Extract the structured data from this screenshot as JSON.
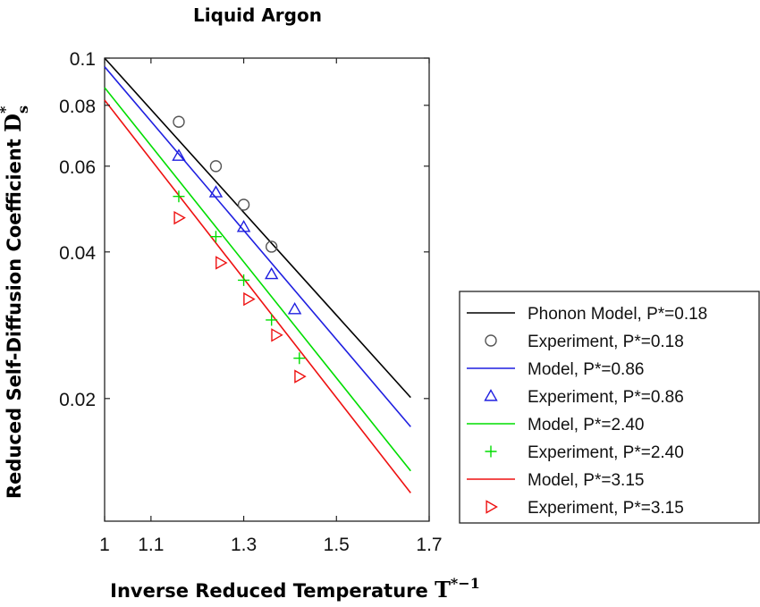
{
  "chart_data": {
    "type": "line",
    "title": "Liquid Argon",
    "xlabel": "Inverse Reduced Temperature",
    "xlabel_symbol": "T",
    "xlabel_superscript": "*−1",
    "ylabel": "Reduced Self-Diffusion Coefficient",
    "ylabel_symbol": "D",
    "ylabel_subscript": "s",
    "ylabel_superscript": "*",
    "x_scale": "linear",
    "y_scale": "log",
    "xlim": [
      1,
      1.7
    ],
    "ylim": [
      0.0112,
      0.1
    ],
    "xticks": [
      1,
      1.1,
      1.3,
      1.5,
      1.7
    ],
    "xtick_labels": [
      "1",
      "1.1",
      "1.3",
      "1.5",
      "1.7"
    ],
    "yticks": [
      0.02,
      0.04,
      0.06,
      0.08,
      0.1
    ],
    "ytick_labels": [
      "0.02",
      "0.04",
      "0.06",
      "0.08",
      "0.1"
    ],
    "grid": false,
    "legend_position": "right, outside",
    "series": [
      {
        "name": "Phonon Model, P*=0.18",
        "kind": "line",
        "color": "#000000",
        "x": [
          1,
          1.66
        ],
        "y": [
          0.1,
          0.0201
        ]
      },
      {
        "name": "Experiment, P*=0.18",
        "kind": "marker",
        "marker": "circle",
        "color": "#555555",
        "x": [
          1.16,
          1.24,
          1.3,
          1.36
        ],
        "y": [
          0.074,
          0.06,
          0.05,
          0.041
        ]
      },
      {
        "name": "Model, P*=0.86",
        "kind": "line",
        "color": "#1f1fe0",
        "x": [
          1,
          1.66
        ],
        "y": [
          0.096,
          0.0175
        ]
      },
      {
        "name": "Experiment, P*=0.86",
        "kind": "marker",
        "marker": "triangle-up",
        "color": "#1f1fe0",
        "x": [
          1.16,
          1.24,
          1.3,
          1.36,
          1.41
        ],
        "y": [
          0.063,
          0.053,
          0.045,
          0.036,
          0.0305
        ]
      },
      {
        "name": "Model, P*=2.40",
        "kind": "line",
        "color": "#00dd00",
        "x": [
          1,
          1.66
        ],
        "y": [
          0.087,
          0.0142
        ]
      },
      {
        "name": "Experiment, P*=2.40",
        "kind": "marker",
        "marker": "plus",
        "color": "#00dd00",
        "x": [
          1.16,
          1.24,
          1.3,
          1.36,
          1.42
        ],
        "y": [
          0.052,
          0.043,
          0.035,
          0.029,
          0.0242
        ]
      },
      {
        "name": "Model, P*=3.15",
        "kind": "line",
        "color": "#ee1111",
        "x": [
          1,
          1.66
        ],
        "y": [
          0.082,
          0.0128
        ]
      },
      {
        "name": "Experiment, P*=3.15",
        "kind": "marker",
        "marker": "triangle-right",
        "color": "#ee1111",
        "x": [
          1.16,
          1.25,
          1.31,
          1.37,
          1.42
        ],
        "y": [
          0.047,
          0.038,
          0.032,
          0.027,
          0.0222
        ]
      }
    ]
  }
}
